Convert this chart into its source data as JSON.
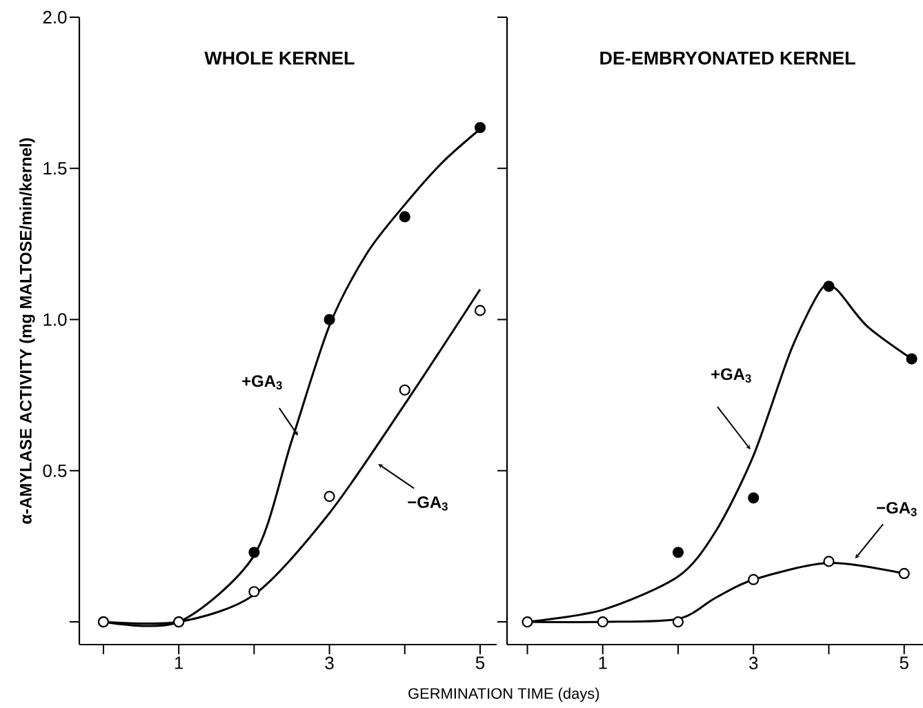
{
  "chart_data": [
    {
      "type": "line",
      "title": "WHOLE KERNEL",
      "ylabel": "α-AMYLASE ACTIVITY (mg MALTOSE/min/kernel)",
      "xlabel": "GERMINATION TIME (days)",
      "xlim": [
        -0.32,
        5.22
      ],
      "ylim": [
        -0.075,
        2.0
      ],
      "xticks": [
        {
          "value": 0,
          "label": null
        },
        1,
        {
          "value": 2,
          "label": null
        },
        3,
        {
          "value": 4,
          "label": null
        },
        5
      ],
      "yticks": [
        {
          "value": 0,
          "label": null
        },
        0.5,
        {
          "value": 1.0,
          "label": "1.0"
        },
        1.5,
        {
          "value": 2.0,
          "label": "2.0"
        }
      ],
      "series": [
        {
          "color": "#000000",
          "marker": "none",
          "x": [
            0,
            1,
            2,
            2.5,
            3,
            3.5,
            4,
            4.5,
            5
          ],
          "values": [
            0,
            0,
            0.22,
            0.6,
            0.98,
            1.22,
            1.38,
            1.52,
            1.63
          ]
        },
        {
          "color": "#000000",
          "marker": "none",
          "x": [
            0,
            1,
            2,
            3,
            4,
            5
          ],
          "values": [
            0,
            0,
            0.09,
            0.36,
            0.72,
            1.1
          ]
        },
        {
          "type": "scatter",
          "color": "#000000",
          "marker": "circle",
          "x": [
            0,
            1,
            2,
            3,
            4,
            5
          ],
          "values": [
            0,
            0,
            0.23,
            1.0,
            1.34,
            1.635
          ]
        },
        {
          "type": "scatter",
          "color": "#ffffff",
          "marker": "circle",
          "x": [
            0,
            1,
            2,
            3,
            4,
            5
          ],
          "values": [
            0,
            0,
            0.1,
            0.415,
            0.767,
            1.03
          ]
        }
      ],
      "annotations": [
        "+GA$_{3}$",
        "−GA$_{3}$"
      ]
    },
    {
      "type": "line",
      "title": "DE-EMBRYONATED KERNEL",
      "xlim": [
        -0.27,
        5.25
      ],
      "ylim": [
        -0.075,
        2.0
      ],
      "xticks": [
        {
          "value": 0,
          "label": null
        },
        1,
        {
          "value": 2,
          "label": null
        },
        3,
        {
          "value": 4,
          "label": null
        },
        5
      ],
      "yticks": [
        {
          "value": 0,
          "label": null
        },
        {
          "value": 0.5,
          "label": null
        },
        {
          "value": 1.0,
          "label": null
        },
        {
          "value": 1.5,
          "label": null
        },
        {
          "value": 2.0,
          "label": null
        }
      ],
      "tick_labels": "x",
      "series": [
        {
          "color": "#000000",
          "marker": "none",
          "x": [
            0,
            1,
            2,
            2.5,
            3,
            3.5,
            3.9,
            4.1,
            4.5,
            5.1
          ],
          "values": [
            0,
            0.04,
            0.15,
            0.3,
            0.55,
            0.9,
            1.1,
            1.1,
            0.98,
            0.87
          ]
        },
        {
          "color": "#000000",
          "marker": "none",
          "x": [
            0,
            1,
            2,
            2.5,
            3,
            4,
            5
          ],
          "values": [
            0,
            0,
            0.01,
            0.08,
            0.14,
            0.195,
            0.16
          ]
        },
        {
          "type": "scatter",
          "color": "#000000",
          "marker": "circle",
          "x": [
            2,
            3,
            4,
            5.1
          ],
          "values": [
            0.23,
            0.41,
            1.11,
            0.87
          ]
        },
        {
          "type": "scatter",
          "color": "#ffffff",
          "marker": "circle",
          "x": [
            0,
            1,
            2,
            3,
            4,
            5
          ],
          "values": [
            0,
            0,
            0,
            0.14,
            0.2,
            0.16
          ]
        }
      ],
      "annotations": [
        "+GA$_{3}$",
        "−GA$_{3}$"
      ]
    }
  ]
}
